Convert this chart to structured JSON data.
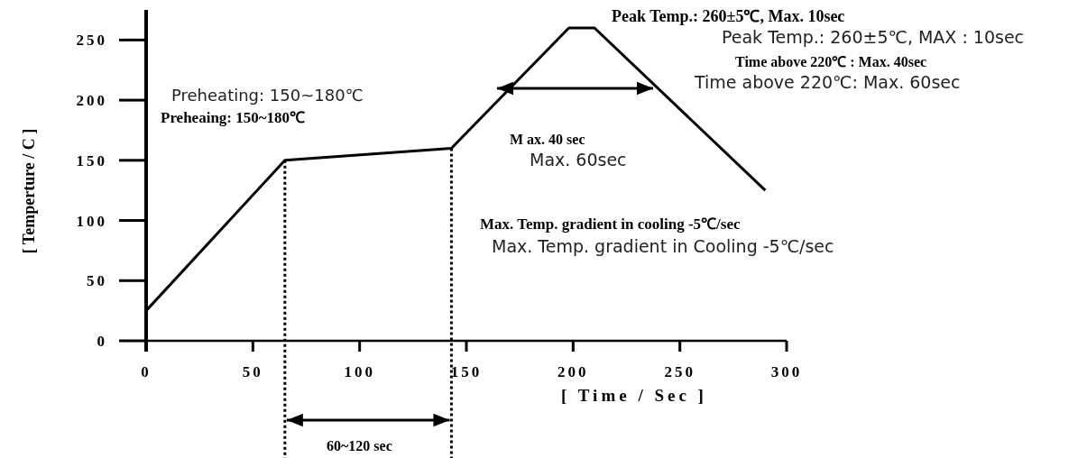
{
  "chart_data": {
    "type": "line",
    "xlabel": "[ Time / Sec ]",
    "ylabel": "[ Temperture / C ]",
    "x": [
      0,
      65,
      143,
      198,
      210,
      290
    ],
    "series": [
      {
        "color": "#000000",
        "values": [
          25,
          150,
          160,
          260,
          260,
          125
        ]
      }
    ],
    "xlim": [
      0,
      300
    ],
    "xticks": [
      0,
      50,
      100,
      150,
      200,
      250,
      300
    ],
    "ylim": [
      0,
      275
    ],
    "yticks": [
      0,
      50,
      100,
      150,
      200,
      250
    ],
    "grid": false,
    "marker": "none",
    "line_style": "solid",
    "ref_lines": [
      {
        "axis": "x",
        "value": 65,
        "line_style": "dotted"
      },
      {
        "axis": "x",
        "value": 143,
        "line_style": "dotted"
      }
    ],
    "annotations": [
      "60~120 sec",
      "M ax. 40 sec",
      "Peak Temp.: 260±5℃, Max. 10sec",
      "Peak Temp.: 260±5℃, MAX : 10sec",
      "Time above 220℃ : Max. 40sec",
      "Time above 220℃: Max. 60sec",
      "Preheaing: 150~180℃",
      "Preheating: 150~180℃",
      "Max. 60sec",
      "Max. Temp. gradient in cooling -5℃/sec",
      "Max. Temp. gradient in Cooling -5℃/sec"
    ]
  }
}
